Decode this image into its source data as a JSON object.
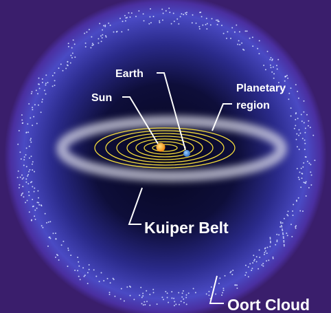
{
  "labels": {
    "earth": "Earth",
    "sun": "Sun",
    "planetary_region": [
      "Planetary",
      "region"
    ],
    "kuiper_belt": "Kuiper Belt",
    "oort_cloud": "Oort Cloud"
  }
}
